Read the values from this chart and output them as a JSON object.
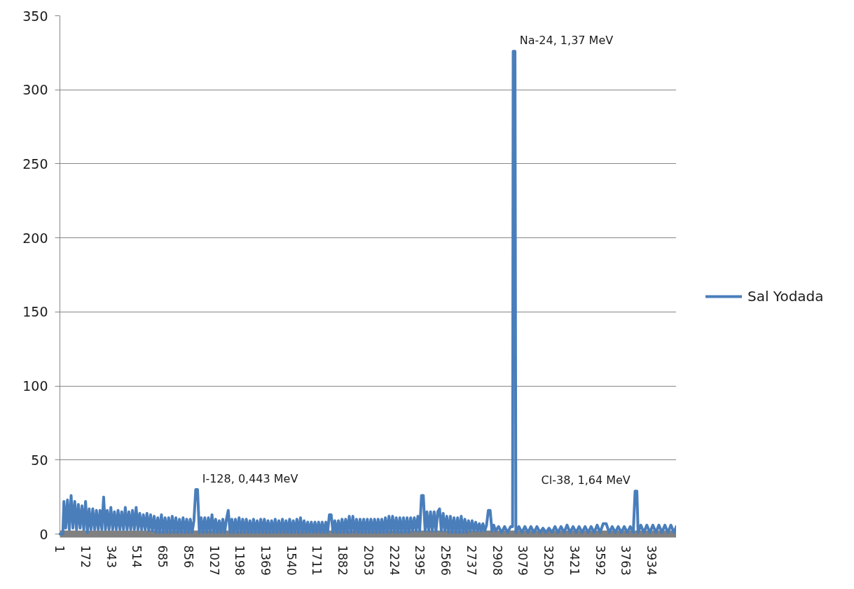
{
  "chart_data": {
    "type": "line",
    "x": [
      1,
      20,
      27,
      39,
      51,
      63,
      75,
      87,
      99,
      111,
      123,
      135,
      147,
      159,
      171,
      183,
      195,
      207,
      219,
      231,
      243,
      255,
      267,
      279,
      291,
      303,
      315,
      327,
      339,
      351,
      363,
      375,
      387,
      399,
      411,
      423,
      435,
      447,
      459,
      471,
      483,
      495,
      507,
      519,
      531,
      543,
      555,
      567,
      579,
      591,
      603,
      615,
      627,
      639,
      651,
      663,
      675,
      687,
      699,
      711,
      723,
      735,
      747,
      759,
      771,
      783,
      795,
      807,
      819,
      831,
      843,
      855,
      867,
      879,
      891,
      903,
      915,
      927,
      939,
      951,
      963,
      975,
      987,
      999,
      1011,
      1023,
      1035,
      1047,
      1059,
      1071,
      1083,
      1095,
      1107,
      1119,
      1131,
      1143,
      1155,
      1167,
      1179,
      1191,
      1203,
      1215,
      1227,
      1239,
      1251,
      1263,
      1275,
      1287,
      1299,
      1311,
      1323,
      1335,
      1347,
      1359,
      1371,
      1383,
      1395,
      1407,
      1419,
      1431,
      1443,
      1455,
      1467,
      1479,
      1491,
      1503,
      1515,
      1527,
      1539,
      1551,
      1563,
      1575,
      1587,
      1599,
      1611,
      1623,
      1635,
      1647,
      1659,
      1671,
      1683,
      1695,
      1707,
      1719,
      1731,
      1743,
      1755,
      1767,
      1779,
      1791,
      1803,
      1815,
      1827,
      1839,
      1851,
      1863,
      1875,
      1887,
      1899,
      1911,
      1923,
      1935,
      1947,
      1959,
      1971,
      1983,
      1995,
      2007,
      2019,
      2031,
      2043,
      2055,
      2067,
      2079,
      2091,
      2103,
      2115,
      2127,
      2139,
      2151,
      2163,
      2175,
      2187,
      2199,
      2211,
      2223,
      2235,
      2247,
      2259,
      2271,
      2283,
      2295,
      2307,
      2319,
      2331,
      2343,
      2355,
      2367,
      2379,
      2391,
      2403,
      2415,
      2427,
      2439,
      2451,
      2463,
      2475,
      2487,
      2499,
      2511,
      2523,
      2535,
      2547,
      2559,
      2571,
      2583,
      2595,
      2607,
      2619,
      2631,
      2643,
      2655,
      2667,
      2679,
      2691,
      2703,
      2715,
      2727,
      2739,
      2751,
      2763,
      2775,
      2787,
      2799,
      2811,
      2823,
      2835,
      2847,
      2859,
      2871,
      2883,
      2895,
      2915,
      2935,
      2955,
      2975,
      2995,
      3008,
      3012,
      3024,
      3030,
      3050,
      3070,
      3090,
      3110,
      3130,
      3150,
      3170,
      3190,
      3210,
      3230,
      3250,
      3270,
      3290,
      3310,
      3330,
      3350,
      3370,
      3390,
      3410,
      3430,
      3450,
      3470,
      3490,
      3510,
      3530,
      3550,
      3570,
      3590,
      3610,
      3630,
      3650,
      3670,
      3690,
      3710,
      3730,
      3750,
      3770,
      3790,
      3810,
      3822,
      3834,
      3842,
      3860,
      3880,
      3900,
      3920,
      3940,
      3960,
      3980,
      4000,
      4020,
      4040,
      4060,
      4080,
      4096
    ],
    "series": [
      {
        "name": "Sal Yodada",
        "color": "#4a7ebb",
        "values": [
          0,
          0,
          22,
          4,
          23,
          3,
          26,
          4,
          22,
          3,
          20,
          4,
          19,
          3,
          22,
          1,
          17,
          3,
          17,
          3,
          16,
          3,
          16,
          3,
          25,
          3,
          16,
          3,
          18,
          3,
          15,
          3,
          16,
          3,
          15,
          3,
          18,
          3,
          15,
          3,
          16,
          3,
          18,
          3,
          14,
          3,
          13,
          3,
          14,
          2,
          13,
          2,
          12,
          1,
          11,
          1,
          13,
          1,
          11,
          1,
          11,
          1,
          12,
          1,
          11,
          1,
          10,
          1,
          11,
          1,
          10,
          1,
          10,
          1,
          9,
          30,
          30,
          1,
          11,
          1,
          11,
          1,
          11,
          1,
          13,
          1,
          10,
          1,
          9,
          1,
          10,
          1,
          10,
          16,
          1,
          10,
          1,
          10,
          1,
          11,
          1,
          10,
          1,
          10,
          1,
          9,
          1,
          10,
          1,
          9,
          1,
          10,
          1,
          10,
          1,
          9,
          1,
          9,
          1,
          10,
          1,
          9,
          1,
          10,
          1,
          9,
          1,
          10,
          1,
          9,
          1,
          10,
          1,
          11,
          1,
          9,
          1,
          8,
          1,
          8,
          1,
          8,
          1,
          8,
          1,
          8,
          1,
          8,
          1,
          13,
          13,
          1,
          9,
          1,
          9,
          1,
          10,
          1,
          10,
          1,
          12,
          1,
          12,
          1,
          10,
          1,
          10,
          1,
          10,
          1,
          10,
          1,
          10,
          1,
          10,
          1,
          10,
          1,
          10,
          1,
          11,
          1,
          12,
          1,
          12,
          1,
          11,
          1,
          11,
          1,
          11,
          1,
          11,
          1,
          11,
          2,
          11,
          2,
          12,
          2,
          26,
          26,
          2,
          15,
          2,
          15,
          2,
          15,
          2,
          15,
          17,
          2,
          14,
          2,
          12,
          1,
          12,
          1,
          11,
          1,
          11,
          1,
          12,
          1,
          10,
          1,
          9,
          2,
          9,
          2,
          8,
          2,
          7,
          2,
          7,
          2,
          6,
          16,
          16,
          2,
          6,
          2,
          5,
          1,
          5,
          1,
          5,
          5,
          326,
          326,
          1,
          5,
          1,
          5,
          1,
          5,
          1,
          5,
          1,
          4,
          1,
          4,
          1,
          5,
          1,
          5,
          1,
          6,
          1,
          5,
          1,
          5,
          1,
          5,
          1,
          5,
          1,
          6,
          1,
          7,
          7,
          1,
          5,
          1,
          5,
          1,
          5,
          1,
          5,
          1,
          29,
          29,
          1,
          6,
          1,
          6,
          1,
          6,
          1,
          6,
          1,
          6,
          1,
          6,
          1,
          5
        ]
      }
    ],
    "xlim": [
      0.5,
      4096.5
    ],
    "xticks": [
      1,
      172,
      343,
      514,
      685,
      856,
      1027,
      1198,
      1369,
      1540,
      1711,
      1882,
      2053,
      2224,
      2395,
      2566,
      2737,
      2908,
      3079,
      3250,
      3421,
      3592,
      3763,
      3934
    ],
    "ylim": [
      0,
      350
    ],
    "yticks": [
      0,
      50,
      100,
      150,
      200,
      250,
      300,
      350
    ],
    "grid": "y",
    "legend": "right",
    "annotations": [
      {
        "text": "Na-24, 1,37 MeV",
        "x": 3018,
        "y": 326
      },
      {
        "text": "I-128, 0,443 MeV",
        "x": 909,
        "y": 30
      },
      {
        "text": "Cl-38, 1,64 MeV",
        "x": 3828,
        "y": 29
      }
    ]
  }
}
